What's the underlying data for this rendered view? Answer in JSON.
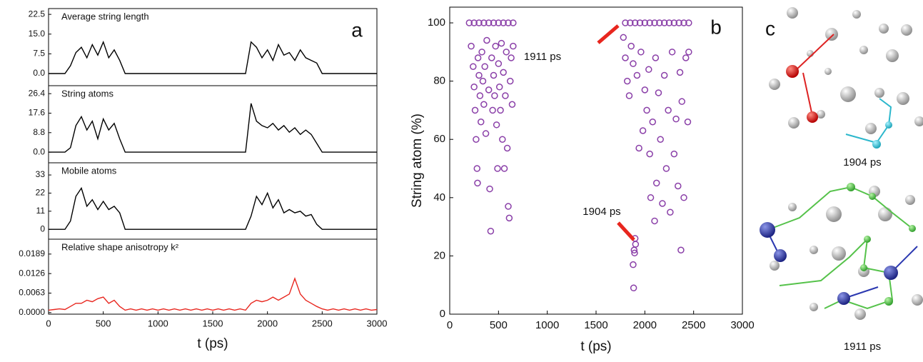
{
  "chart_data": [
    {
      "type": "line",
      "panel_label": "a",
      "xlabel": "t (ps)",
      "xlim": [
        0,
        3000
      ],
      "xticks": [
        0,
        500,
        1000,
        1500,
        2000,
        2500,
        3000
      ],
      "x": [
        0,
        50,
        100,
        150,
        200,
        250,
        300,
        350,
        400,
        450,
        500,
        550,
        600,
        650,
        700,
        750,
        800,
        850,
        900,
        950,
        1000,
        1050,
        1100,
        1150,
        1200,
        1250,
        1300,
        1350,
        1400,
        1450,
        1500,
        1550,
        1600,
        1650,
        1700,
        1750,
        1800,
        1850,
        1900,
        1950,
        2000,
        2050,
        2100,
        2150,
        2200,
        2250,
        2300,
        2350,
        2400,
        2450,
        2500,
        2550,
        2600,
        2650,
        2700,
        2750,
        2800,
        2850,
        2900,
        2950,
        3000
      ],
      "subplots": [
        {
          "title": "Average string length",
          "color": "#000000",
          "ylim": [
            -4.6,
            24.7
          ],
          "yticks": [
            {
              "value": 0,
              "label": "0.0"
            },
            7.5,
            {
              "value": 15,
              "label": "15.0"
            },
            22.5
          ],
          "values": [
            0,
            0,
            0,
            0,
            3,
            8,
            10,
            6,
            11,
            7,
            12,
            6,
            9,
            5,
            0,
            0,
            0,
            0,
            0,
            0,
            0,
            0,
            0,
            0,
            0,
            0,
            0,
            0,
            0,
            0,
            0,
            0,
            0,
            0,
            0,
            0,
            0,
            12,
            10,
            6,
            9,
            5,
            11,
            7,
            8,
            5,
            9,
            6,
            5,
            4,
            0,
            0,
            0,
            0,
            0,
            0,
            0,
            0,
            0,
            0,
            0
          ]
        },
        {
          "title": "String atoms",
          "color": "#000000",
          "ylim": [
            -4.8,
            30
          ],
          "yticks": [
            {
              "value": 0,
              "label": "0.0"
            },
            8.8,
            17.6,
            26.4
          ],
          "values": [
            0,
            0,
            0,
            0,
            2,
            12,
            16,
            10,
            14,
            6,
            15,
            10,
            13,
            6,
            0,
            0,
            0,
            0,
            0,
            0,
            0,
            0,
            0,
            0,
            0,
            0,
            0,
            0,
            0,
            0,
            0,
            0,
            0,
            0,
            0,
            0,
            0,
            22,
            14,
            12,
            11,
            13,
            10,
            12,
            9,
            11,
            8,
            10,
            8,
            4,
            0,
            0,
            0,
            0,
            0,
            0,
            0,
            0,
            0,
            0,
            0
          ]
        },
        {
          "title": "Mobile atoms",
          "color": "#000000",
          "ylim": [
            -6,
            40.4
          ],
          "yticks": [
            0,
            11,
            22,
            33
          ],
          "values": [
            0,
            0,
            0,
            0,
            5,
            20,
            25,
            14,
            18,
            12,
            17,
            12,
            14,
            10,
            0,
            0,
            0,
            0,
            0,
            0,
            0,
            0,
            0,
            0,
            0,
            0,
            0,
            0,
            0,
            0,
            0,
            0,
            0,
            0,
            0,
            0,
            0,
            8,
            20,
            15,
            22,
            13,
            18,
            10,
            12,
            10,
            11,
            8,
            9,
            3,
            0,
            0,
            0,
            0,
            0,
            0,
            0,
            0,
            0,
            0,
            0
          ]
        },
        {
          "title": "Relative shape anisotropy k²",
          "color": "#e8261e",
          "ylim": [
            -0.0005,
            0.0237
          ],
          "yticks": [
            {
              "value": 0,
              "label": "0.0000"
            },
            0.0063,
            0.0126,
            0.0189
          ],
          "values": [
            0.0008,
            0.001,
            0.0012,
            0.001,
            0.002,
            0.003,
            0.003,
            0.004,
            0.0035,
            0.0045,
            0.005,
            0.003,
            0.004,
            0.002,
            0.0008,
            0.0012,
            0.0008,
            0.0012,
            0.0008,
            0.0012,
            0.0008,
            0.0012,
            0.0008,
            0.0012,
            0.0008,
            0.0012,
            0.0008,
            0.0012,
            0.0008,
            0.0012,
            0.0008,
            0.0012,
            0.0008,
            0.0012,
            0.0008,
            0.0012,
            0.0008,
            0.003,
            0.004,
            0.0035,
            0.004,
            0.005,
            0.004,
            0.005,
            0.006,
            0.011,
            0.006,
            0.004,
            0.003,
            0.002,
            0.0012,
            0.0008,
            0.0012,
            0.0008,
            0.0012,
            0.0008,
            0.0012,
            0.0008,
            0.0012,
            0.0008,
            0.001
          ]
        }
      ]
    },
    {
      "type": "scatter",
      "panel_label": "b",
      "xlabel": "t (ps)",
      "ylabel": "String atom (%)",
      "xlim": [
        0,
        3000
      ],
      "xticks": [
        0,
        500,
        1000,
        1500,
        2000,
        2500,
        3000
      ],
      "ylim": [
        0,
        105.4
      ],
      "yticks": [
        0,
        20,
        40,
        60,
        80,
        100
      ],
      "color": "#8a3fa8",
      "annotations": [
        "1911 ps",
        "1904 ps"
      ],
      "x": [
        200,
        250,
        300,
        350,
        400,
        450,
        500,
        550,
        600,
        650,
        1800,
        1850,
        1900,
        1950,
        2000,
        2050,
        2100,
        2150,
        2200,
        2250,
        2300,
        2350,
        2400,
        2450,
        220,
        240,
        250,
        260,
        270,
        280,
        285,
        290,
        300,
        310,
        320,
        330,
        340,
        350,
        360,
        370,
        380,
        400,
        410,
        420,
        430,
        440,
        450,
        460,
        470,
        480,
        490,
        500,
        510,
        520,
        530,
        540,
        550,
        560,
        570,
        580,
        590,
        600,
        610,
        620,
        630,
        640,
        650,
        1780,
        1800,
        1820,
        1840,
        1860,
        1880,
        1890,
        1895,
        1900,
        1905,
        1880,
        1885,
        1920,
        1940,
        1960,
        1980,
        2000,
        2020,
        2040,
        2050,
        2060,
        2080,
        2100,
        2110,
        2120,
        2140,
        2160,
        2180,
        2200,
        2220,
        2240,
        2260,
        2280,
        2300,
        2320,
        2340,
        2360,
        2370,
        2380,
        2400,
        2420,
        2440,
        2450
      ],
      "y": [
        100,
        100,
        100,
        100,
        100,
        100,
        100,
        100,
        100,
        100,
        100,
        100,
        100,
        100,
        100,
        100,
        100,
        100,
        100,
        100,
        100,
        100,
        100,
        100,
        92,
        85,
        78,
        70,
        60,
        50,
        45,
        88,
        82,
        75,
        66,
        90,
        80,
        72,
        85,
        62,
        94,
        77,
        43,
        28.5,
        88,
        70,
        82,
        75,
        92,
        65,
        50,
        86,
        78,
        70,
        93,
        60,
        83,
        50,
        75,
        90,
        57,
        37,
        33,
        80,
        88,
        72,
        92,
        95,
        88,
        80,
        75,
        92,
        86,
        22,
        21,
        26,
        24,
        17,
        9,
        82,
        57,
        90,
        63,
        77,
        70,
        84,
        55,
        40,
        66,
        32,
        88,
        45,
        76,
        60,
        38,
        82,
        50,
        70,
        35,
        90,
        55,
        67,
        44,
        83,
        22,
        73,
        40,
        88,
        66,
        90
      ]
    }
  ],
  "panel_c": {
    "label": "c",
    "captions": [
      "1904 ps",
      "1911 ps"
    ]
  }
}
